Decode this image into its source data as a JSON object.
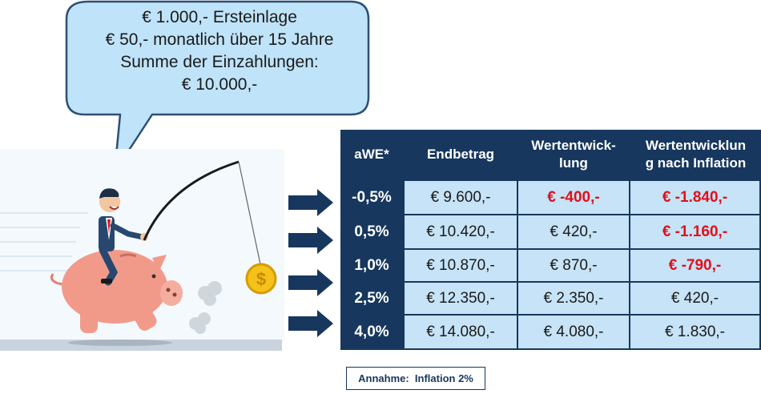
{
  "bubble": {
    "lines": [
      "€ 1.000,- Ersteinlage",
      "€ 50,- monatlich über 15 Jahre",
      "Summe der Einzahlungen:",
      "€ 10.000,-"
    ]
  },
  "table": {
    "headers": {
      "awe": "aWE*",
      "endbetrag": "Endbetrag",
      "wert_line1": "Wertentwick-",
      "wert_line2": "lung",
      "infl_line1": "Wertentwicklun",
      "infl_line2": "g nach Inflation"
    },
    "rows": [
      {
        "awe": "-0,5%",
        "endbetrag": "€ 9.600,-",
        "wertentwicklung": "€ -400,-",
        "nach_inflation": "€ -1.840,-"
      },
      {
        "awe": "0,5%",
        "endbetrag": "€ 10.420,-",
        "wertentwicklung": "€ 420,-",
        "nach_inflation": "€ -1.160,-"
      },
      {
        "awe": "1,0%",
        "endbetrag": "€ 10.870,-",
        "wertentwicklung": "€ 870,-",
        "nach_inflation": "€ -790,-"
      },
      {
        "awe": "2,5%",
        "endbetrag": "€ 12.350,-",
        "wertentwicklung": "€ 2.350,-",
        "nach_inflation": "€ 420,-"
      },
      {
        "awe": "4,0%",
        "endbetrag": "€ 14.080,-",
        "wertentwicklung": "€ 4.080,-",
        "nach_inflation": "€ 1.830,-"
      }
    ],
    "negative_color": "#e2101a"
  },
  "note": {
    "text": "Annahme:  Inflation 2%"
  },
  "colors": {
    "table_header": "#17375e",
    "cell_background": "#c6e3f7",
    "bubble_fill": "#bfe3f8",
    "bubble_stroke": "#2e4f74",
    "arrow": "#17375e",
    "piggy": "#f29a8a"
  },
  "icons": [
    "speech-bubble",
    "businessman-icon",
    "piggy-bank-icon",
    "fishing-rod-icon",
    "dollar-coin-icon",
    "dust-cloud-icon",
    "arrow-right-icon"
  ]
}
